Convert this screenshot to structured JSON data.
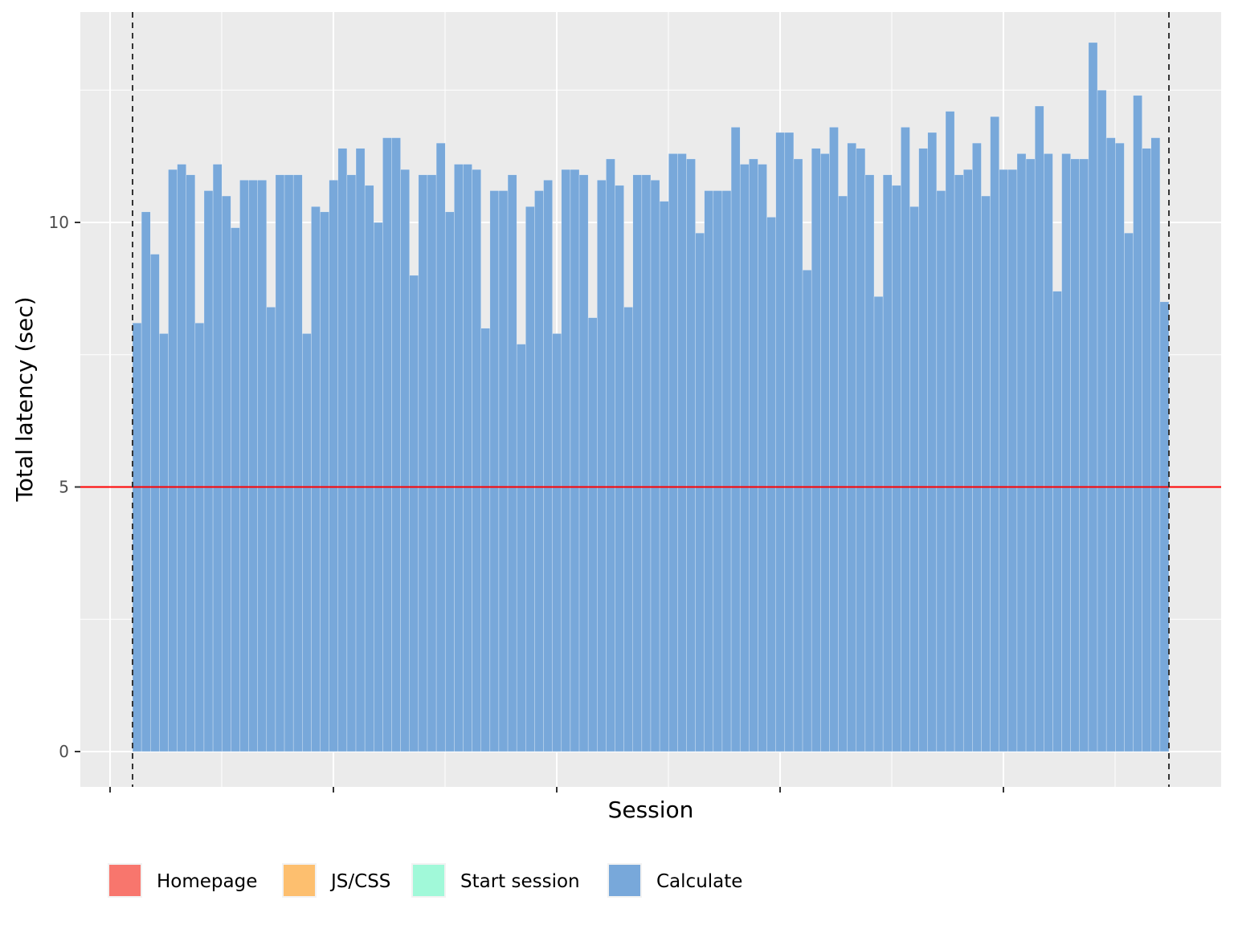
{
  "chart_data": {
    "type": "bar",
    "xlabel": "Session",
    "ylabel": "Total latency (sec)",
    "y_ticks": [
      0,
      5,
      10
    ],
    "ylim": [
      -0.7,
      14.0
    ],
    "x_ticks_labeled": false,
    "grid": true,
    "legend_position": "bottom",
    "threshold_line": {
      "y": 5,
      "color": "#ff0000"
    },
    "vertical_dashed_lines": "at first and last session",
    "series": [
      {
        "name": "Homepage",
        "color": "#f8766d",
        "values": []
      },
      {
        "name": "JS/CSS",
        "color": "#fdbf6f",
        "values": []
      },
      {
        "name": "Start session",
        "color": "#a1f9d9",
        "values": []
      },
      {
        "name": "Calculate",
        "color": "#78a8da",
        "values": [
          8.1,
          10.2,
          9.4,
          7.9,
          11.0,
          11.1,
          10.9,
          8.1,
          10.6,
          11.1,
          10.5,
          9.9,
          10.8,
          10.8,
          10.8,
          8.4,
          10.9,
          10.9,
          10.9,
          7.9,
          10.3,
          10.2,
          10.8,
          11.4,
          10.9,
          11.4,
          10.7,
          10.0,
          11.6,
          11.6,
          11.0,
          9.0,
          10.9,
          10.9,
          11.5,
          10.2,
          11.1,
          11.1,
          11.0,
          8.0,
          10.6,
          10.6,
          10.9,
          7.7,
          10.3,
          10.6,
          10.8,
          7.9,
          11.0,
          11.0,
          10.9,
          8.2,
          10.8,
          11.2,
          10.7,
          8.4,
          10.9,
          10.9,
          10.8,
          10.4,
          11.3,
          11.3,
          11.2,
          9.8,
          10.6,
          10.6,
          10.6,
          11.8,
          11.1,
          11.2,
          11.1,
          10.1,
          11.7,
          11.7,
          11.2,
          9.1,
          11.4,
          11.3,
          11.8,
          10.5,
          11.5,
          11.4,
          10.9,
          8.6,
          10.9,
          10.7,
          11.8,
          10.3,
          11.4,
          11.7,
          10.6,
          12.1,
          10.9,
          11.0,
          11.5,
          10.5,
          12.0,
          11.0,
          11.0,
          11.3,
          11.2,
          12.2,
          11.3,
          8.7,
          11.3,
          11.2,
          11.2,
          13.4,
          12.5,
          11.6,
          11.5,
          9.8,
          12.4,
          11.4,
          11.6,
          8.5
        ]
      }
    ]
  }
}
